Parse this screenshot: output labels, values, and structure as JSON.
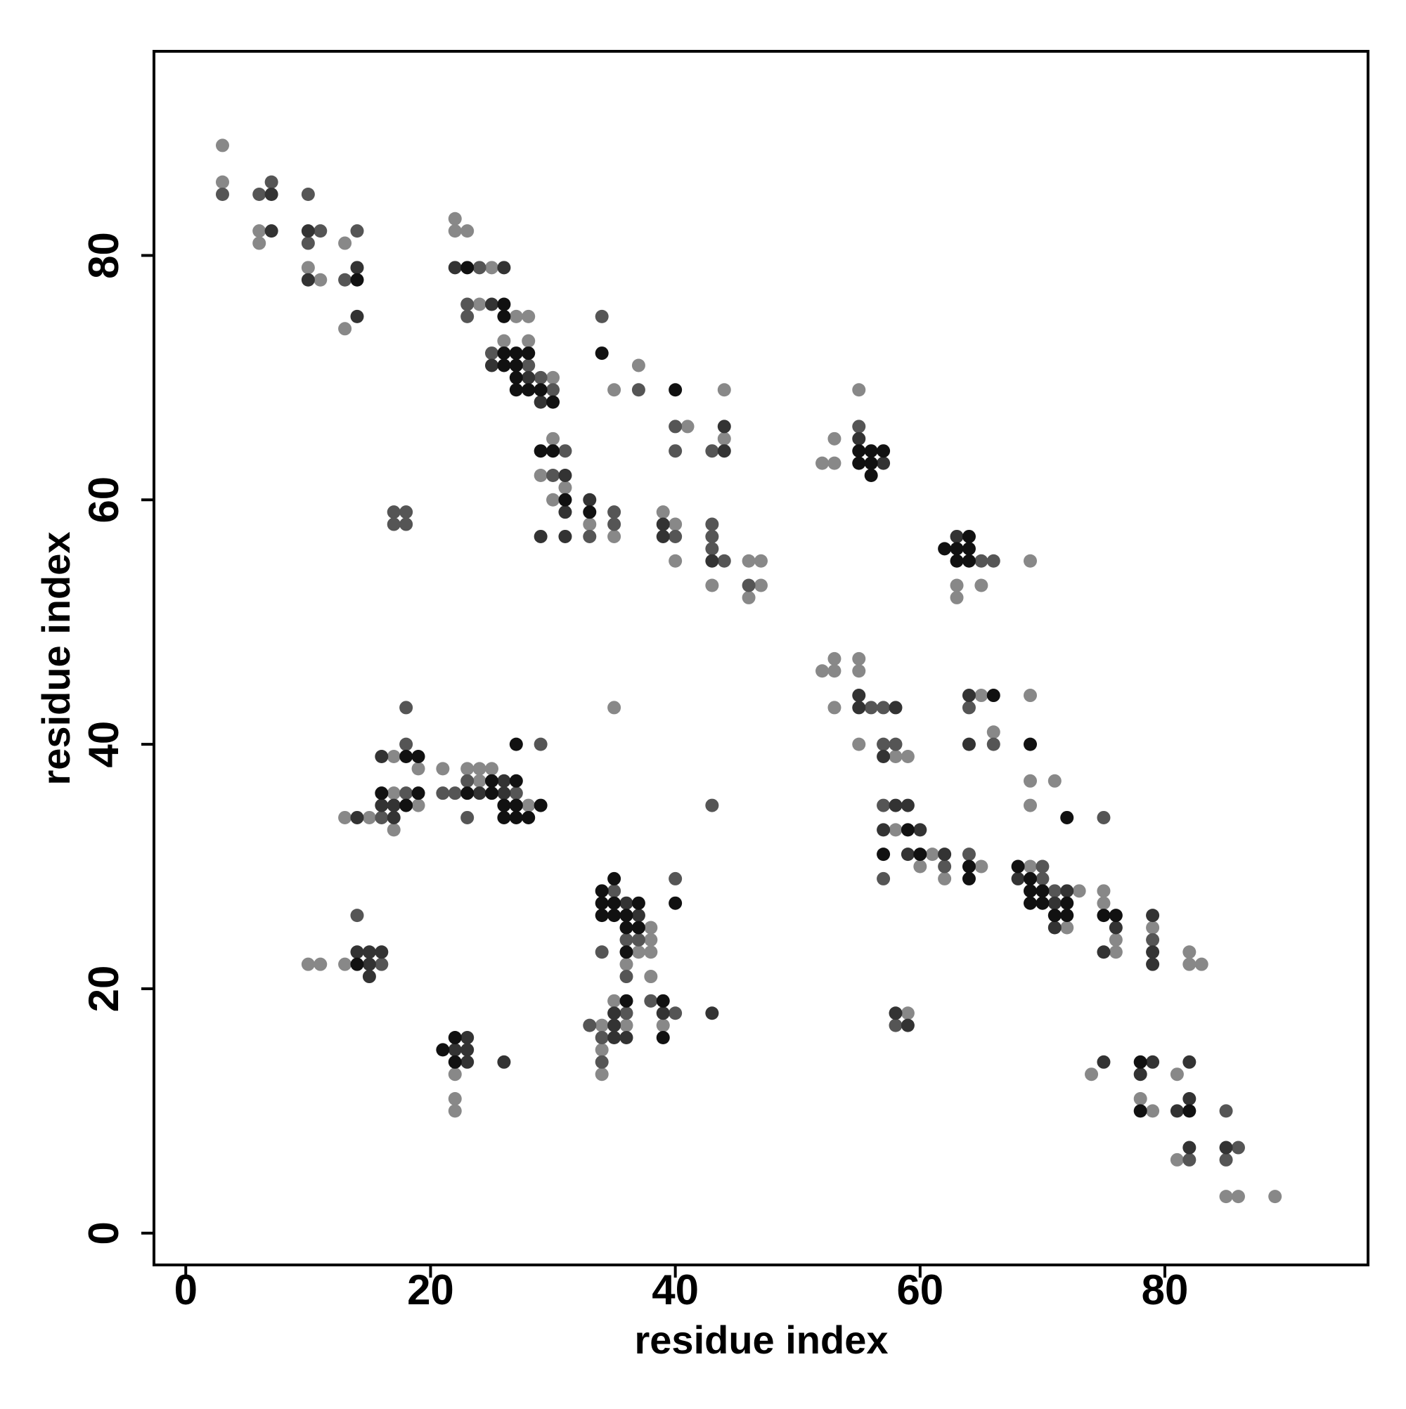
{
  "chart_data": {
    "type": "scatter",
    "xlabel": "residue index",
    "ylabel": "residue index",
    "xlim": [
      -2.6,
      96.6
    ],
    "ylim": [
      -2.6,
      96.7
    ],
    "xticks": [
      0,
      20,
      40,
      60,
      80
    ],
    "yticks": [
      0,
      20,
      40,
      60,
      80
    ],
    "grid": false,
    "series": [
      {
        "color": "#888888",
        "x": [
          3,
          3,
          6,
          6,
          10,
          11,
          13,
          13,
          22,
          22,
          23,
          25,
          24,
          26,
          28,
          27,
          28,
          30,
          35,
          37,
          41,
          44,
          44,
          30,
          29,
          31,
          30,
          33,
          35,
          39,
          40,
          40,
          43,
          46,
          47,
          47,
          46,
          52,
          53,
          53,
          55,
          69,
          63,
          63,
          65,
          52,
          53,
          53,
          55,
          55,
          53,
          55,
          58,
          59,
          65,
          66,
          69,
          69,
          71,
          69,
          58,
          61,
          60,
          62,
          65,
          69,
          73,
          72,
          75,
          75,
          76,
          76,
          79,
          82,
          82,
          83,
          74,
          78,
          79,
          81,
          81,
          85,
          86,
          89,
          59,
          17,
          19,
          17,
          19,
          13,
          15,
          17,
          21,
          23,
          24,
          25,
          24,
          28,
          35,
          10,
          11,
          13,
          38,
          38,
          37,
          38,
          36,
          38,
          34,
          35,
          34,
          34,
          36,
          39,
          22,
          22,
          22
        ],
        "y": [
          89,
          86,
          82,
          81,
          79,
          78,
          81,
          74,
          83,
          82,
          82,
          79,
          76,
          73,
          73,
          75,
          75,
          70,
          69,
          71,
          66,
          69,
          65,
          65,
          62,
          61,
          60,
          58,
          57,
          59,
          58,
          55,
          53,
          55,
          55,
          53,
          52,
          63,
          63,
          65,
          69,
          55,
          53,
          52,
          53,
          46,
          47,
          46,
          47,
          46,
          43,
          40,
          39,
          39,
          44,
          41,
          44,
          37,
          37,
          35,
          33,
          31,
          30,
          29,
          30,
          30,
          28,
          25,
          28,
          27,
          24,
          23,
          25,
          23,
          22,
          22,
          13,
          11,
          10,
          13,
          6,
          3,
          3,
          3,
          18,
          39,
          38,
          36,
          35,
          34,
          34,
          33,
          38,
          38,
          38,
          38,
          37,
          35,
          43,
          22,
          22,
          22,
          25,
          24,
          23,
          23,
          22,
          21,
          17,
          19,
          15,
          13,
          17,
          17,
          13,
          11,
          10
        ]
      },
      {
        "color": "#555555",
        "x": [
          3,
          6,
          7,
          10,
          11,
          10,
          14,
          13,
          24,
          23,
          23,
          25,
          28,
          29,
          30,
          34,
          37,
          40,
          40,
          43,
          31,
          30,
          33,
          35,
          35,
          40,
          43,
          43,
          43,
          44,
          46,
          18,
          17,
          17,
          18,
          55,
          65,
          66,
          56,
          57,
          57,
          58,
          64,
          66,
          75,
          57,
          62,
          57,
          64,
          70,
          70,
          71,
          79,
          82,
          85,
          86,
          85,
          58,
          18,
          18,
          18,
          16,
          21,
          22,
          23,
          27,
          23,
          29,
          43,
          14,
          16,
          35,
          36,
          37,
          34,
          36,
          40,
          33,
          36,
          38,
          34,
          34,
          40
        ],
        "y": [
          85,
          85,
          86,
          85,
          82,
          81,
          82,
          78,
          79,
          76,
          75,
          72,
          71,
          70,
          69,
          75,
          69,
          66,
          64,
          64,
          64,
          62,
          57,
          59,
          58,
          57,
          58,
          57,
          56,
          55,
          53,
          59,
          59,
          58,
          58,
          66,
          55,
          55,
          43,
          43,
          40,
          40,
          43,
          40,
          34,
          35,
          30,
          29,
          31,
          30,
          29,
          28,
          24,
          6,
          10,
          7,
          6,
          17,
          43,
          40,
          36,
          34,
          36,
          36,
          37,
          36,
          34,
          40,
          35,
          26,
          22,
          28,
          24,
          24,
          23,
          21,
          29,
          17,
          18,
          19,
          16,
          14,
          18
        ]
      },
      {
        "color": "#333333",
        "x": [
          7,
          7,
          10,
          10,
          14,
          14,
          22,
          26,
          25,
          25,
          28,
          29,
          44,
          44,
          31,
          31,
          29,
          31,
          33,
          39,
          39,
          43,
          55,
          57,
          63,
          55,
          55,
          58,
          57,
          64,
          64,
          58,
          59,
          57,
          60,
          59,
          62,
          68,
          72,
          71,
          71,
          76,
          75,
          79,
          79,
          79,
          75,
          79,
          78,
          82,
          82,
          81,
          82,
          85,
          58,
          59,
          16,
          16,
          17,
          14,
          17,
          26,
          24,
          26,
          14,
          15,
          16,
          15,
          15,
          36,
          37,
          35,
          35,
          36,
          35,
          39,
          43,
          23,
          22,
          23,
          23,
          26
        ],
        "y": [
          85,
          82,
          82,
          78,
          79,
          75,
          79,
          79,
          76,
          71,
          70,
          68,
          66,
          64,
          62,
          59,
          57,
          57,
          60,
          58,
          57,
          55,
          65,
          63,
          57,
          44,
          43,
          43,
          39,
          44,
          40,
          35,
          35,
          33,
          33,
          31,
          31,
          29,
          28,
          27,
          25,
          25,
          23,
          26,
          23,
          22,
          14,
          14,
          13,
          14,
          11,
          10,
          7,
          7,
          18,
          17,
          39,
          35,
          35,
          34,
          34,
          37,
          36,
          36,
          23,
          23,
          23,
          22,
          21,
          27,
          26,
          18,
          16,
          16,
          17,
          18,
          18,
          16,
          15,
          15,
          14,
          14
        ]
      },
      {
        "color": "#111111",
        "x": [
          14,
          23,
          26,
          26,
          26,
          27,
          28,
          26,
          27,
          27,
          27,
          28,
          29,
          30,
          34,
          40,
          29,
          30,
          31,
          33,
          55,
          56,
          57,
          55,
          56,
          56,
          62,
          64,
          63,
          64,
          63,
          64,
          66,
          69,
          72,
          59,
          57,
          60,
          64,
          64,
          68,
          69,
          69,
          70,
          69,
          70,
          72,
          71,
          72,
          75,
          76,
          78,
          78,
          82,
          18,
          19,
          16,
          19,
          18,
          25,
          27,
          23,
          25,
          26,
          27,
          29,
          26,
          27,
          28,
          27,
          14,
          34,
          35,
          34,
          35,
          37,
          34,
          35,
          36,
          36,
          37,
          36,
          40,
          36,
          39,
          39,
          21,
          22,
          22
        ],
        "y": [
          78,
          79,
          76,
          75,
          72,
          72,
          72,
          71,
          71,
          70,
          69,
          69,
          69,
          68,
          72,
          69,
          64,
          64,
          60,
          59,
          64,
          64,
          64,
          63,
          63,
          62,
          56,
          57,
          56,
          56,
          55,
          55,
          44,
          40,
          34,
          33,
          31,
          31,
          30,
          29,
          30,
          29,
          28,
          28,
          27,
          27,
          27,
          26,
          26,
          26,
          26,
          14,
          10,
          10,
          39,
          39,
          36,
          36,
          35,
          37,
          37,
          36,
          36,
          35,
          35,
          35,
          34,
          34,
          34,
          40,
          22,
          28,
          29,
          27,
          27,
          27,
          26,
          26,
          26,
          25,
          25,
          23,
          27,
          19,
          19,
          16,
          15,
          16,
          14
        ]
      }
    ]
  }
}
